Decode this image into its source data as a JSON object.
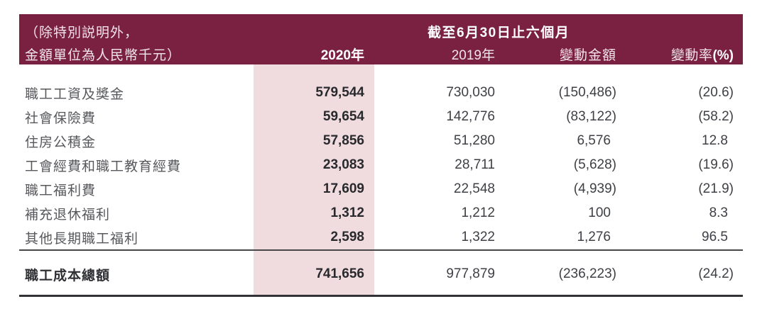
{
  "table": {
    "note_line1": "（除特別説明外，",
    "note_line2": "金額單位為人民幣千元）",
    "period_header": "截至6月30日止六個月",
    "columns": {
      "y2020": "2020年",
      "y2019": "2019年",
      "change": "變動金額",
      "rate_prefix": "變動率",
      "rate_suffix": "(%)"
    },
    "rows": [
      {
        "label": "職工工資及獎金",
        "y2020": "579,544",
        "y2019": "730,030",
        "change": "(150,486)",
        "rate": "(20.6)"
      },
      {
        "label": "社會保險費",
        "y2020": "59,654",
        "y2019": "142,776",
        "change": "(83,122)",
        "rate": "(58.2)"
      },
      {
        "label": "住房公積金",
        "y2020": "57,856",
        "y2019": "51,280",
        "change": "6,576",
        "rate": "12.8"
      },
      {
        "label": "工會經費和職工教育經費",
        "y2020": "23,083",
        "y2019": "28,711",
        "change": "(5,628)",
        "rate": "(19.6)"
      },
      {
        "label": "職工福利費",
        "y2020": "17,609",
        "y2019": "22,548",
        "change": "(4,939)",
        "rate": "(21.9)"
      },
      {
        "label": "補充退休福利",
        "y2020": "1,312",
        "y2019": "1,212",
        "change": "100",
        "rate": "8.3"
      },
      {
        "label": "其他長期職工福利",
        "y2020": "2,598",
        "y2019": "1,322",
        "change": "1,276",
        "rate": "96.5"
      }
    ],
    "total": {
      "label": "職工成本總額",
      "y2020": "741,656",
      "y2019": "977,879",
      "change": "(236,223)",
      "rate": "(24.2)"
    },
    "colors": {
      "header_background": "#7A2142",
      "highlight_column": "#F0DCDF",
      "header_text": "#F2E4E9"
    }
  }
}
